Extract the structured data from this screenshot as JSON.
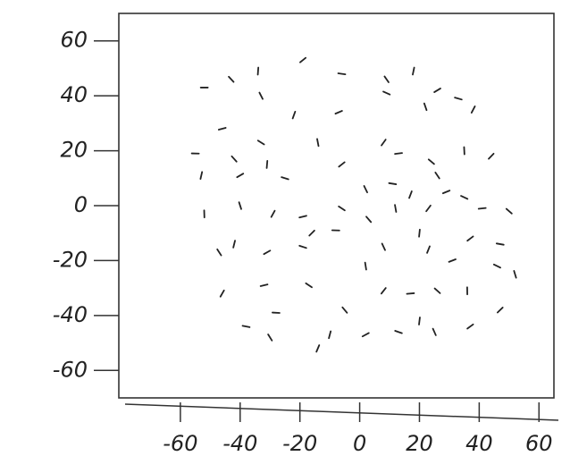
{
  "chart_data": {
    "type": "scatter",
    "x": [
      -52,
      -43,
      -34,
      -19,
      -6,
      9,
      18,
      26,
      33,
      -33,
      -22,
      -7,
      9,
      22,
      38,
      -46,
      -33,
      -14,
      8,
      13,
      24,
      35,
      44,
      -55,
      -42,
      -31,
      -6,
      11,
      26,
      -53,
      -40,
      -25,
      2,
      17,
      29,
      35,
      -40,
      -29,
      -19,
      -6,
      12,
      23,
      41,
      50,
      -52,
      -16,
      -8,
      3,
      20,
      37,
      47,
      -47,
      -42,
      -31,
      -19,
      8,
      23,
      31,
      46,
      52,
      -46,
      -32,
      -17,
      2,
      8,
      17,
      26,
      36,
      47,
      -28,
      -5,
      20,
      37,
      -38,
      -30,
      -10,
      2,
      13,
      25,
      -14
    ],
    "y": [
      43,
      46,
      49,
      53,
      48,
      46,
      49,
      42,
      39,
      40,
      33,
      34,
      41,
      36,
      35,
      28,
      23,
      23,
      23,
      19,
      16,
      20,
      18,
      19,
      17,
      15,
      15,
      8,
      11,
      11,
      11,
      10,
      6,
      4,
      5,
      3,
      0,
      -3,
      -4,
      -1,
      -1,
      -1,
      -1,
      -2,
      -3,
      -10,
      -9,
      -5,
      -10,
      -12,
      -14,
      -17,
      -14,
      -17,
      -15,
      -15,
      -16,
      -20,
      -22,
      -25,
      -32,
      -29,
      -29,
      -22,
      -31,
      -32,
      -31,
      -31,
      -38,
      -39,
      -38,
      -42,
      -44,
      -44,
      -48,
      -47,
      -47,
      -46,
      -46,
      -52
    ],
    "color": "#222222",
    "xlim": [
      -80,
      65
    ],
    "ylim": [
      -70,
      70
    ],
    "xticks": [
      -60,
      -40,
      -20,
      0,
      20,
      40,
      60
    ],
    "yticks": [
      60,
      40,
      20,
      0,
      -20,
      -40,
      -60
    ]
  }
}
